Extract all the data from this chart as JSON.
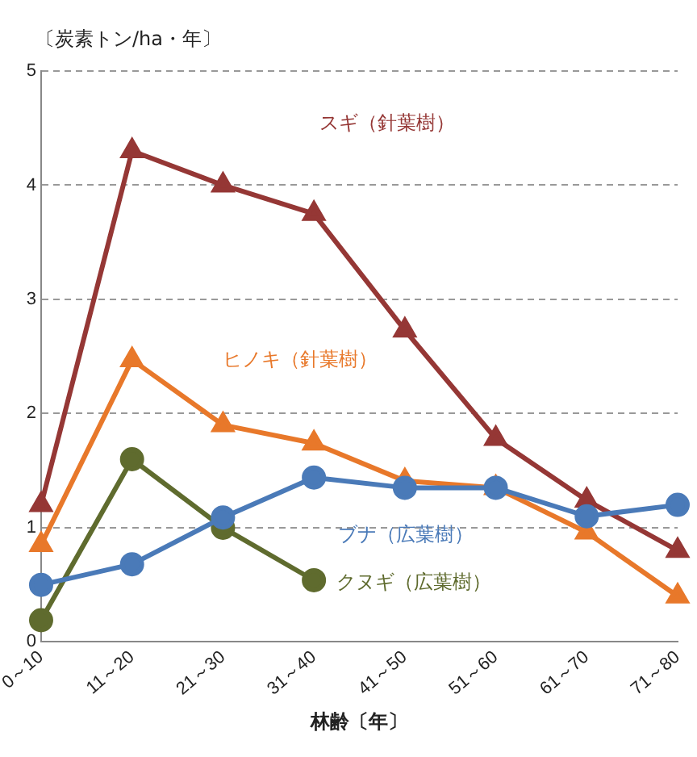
{
  "chart_data": {
    "type": "line",
    "ylabel": "〔炭素トン/ha・年〕",
    "xlabel": "林齢〔年〕",
    "categories": [
      "0～10",
      "11～20",
      "21～30",
      "31～40",
      "41～50",
      "51～60",
      "61～70",
      "71～80"
    ],
    "series": [
      {
        "name": "スギ（針葉樹）",
        "color": "#953735",
        "marker": "triangle",
        "values": [
          1.2,
          4.3,
          4.0,
          3.75,
          2.73,
          1.78,
          1.24,
          0.8
        ]
      },
      {
        "name": "ヒノキ（針葉樹）",
        "color": "#e8782a",
        "marker": "triangle",
        "values": [
          0.85,
          2.47,
          1.9,
          1.74,
          1.41,
          1.35,
          0.96,
          0.4
        ]
      },
      {
        "name": "ブナ（広葉樹）",
        "color": "#4a7ab8",
        "marker": "circle",
        "values": [
          0.5,
          0.68,
          1.09,
          1.44,
          1.35,
          1.35,
          1.1,
          1.2
        ]
      },
      {
        "name": "クヌギ（広葉樹）",
        "color": "#5f6b2e",
        "marker": "circle",
        "values": [
          0.19,
          1.6,
          1.0,
          0.54,
          null,
          null,
          null,
          null
        ]
      }
    ],
    "ylim": [
      0,
      5
    ],
    "yticks": [
      0,
      1,
      2,
      3,
      4,
      5
    ],
    "grid": "y",
    "legend": false
  }
}
